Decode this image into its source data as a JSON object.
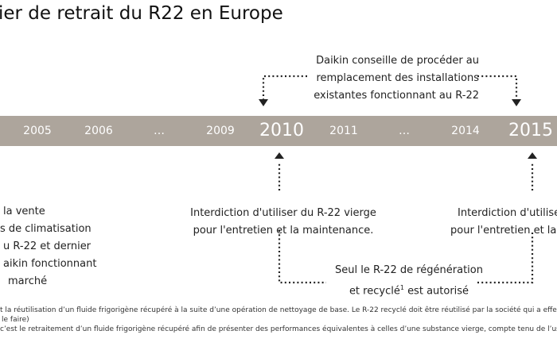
{
  "title": "ier de retrait du R22 en Europe",
  "timeline": {
    "years": [
      {
        "label": "2005",
        "major": false
      },
      {
        "label": "2006",
        "major": false
      },
      {
        "label": "…",
        "major": false
      },
      {
        "label": "2009",
        "major": false
      },
      {
        "label": "2010",
        "major": true
      },
      {
        "label": "2011",
        "major": false
      },
      {
        "label": "…",
        "major": false
      },
      {
        "label": "2014",
        "major": false
      },
      {
        "label": "2015",
        "major": true
      }
    ]
  },
  "advice": {
    "line1": "Daikin conseille de procéder au",
    "line2": "remplacement des installations",
    "line3": "existantes fonctionnant au R-22"
  },
  "left_note": {
    "line1": "la vente",
    "line2": "s de climatisation",
    "line3": "u R-22 et dernier",
    "line4": "aikin fonctionnant",
    "line5": "marché"
  },
  "ban_2010": {
    "line1": "Interdiction d'utiliser du R-22 vierge",
    "line2": "pour l'entretien et la maintenance."
  },
  "ban_2015": {
    "line1": "Interdiction d'utilise",
    "line2": "pour l'entretien et la m"
  },
  "recycled": {
    "line1": "Seul le R-22 de régénération",
    "line2_a": "et recyclé",
    "line2_sup": "1",
    "line2_b": "est autorisé"
  },
  "footnotes": {
    "line1": "t la réutilisation d’un fluide frigorigène récupéré à la suite d’une opération de nettoyage de base. Le R-22 recyclé doit être réutilisé par la société qui a effec",
    "line2": "le faire)",
    "line3": "c’est le retraitement d’un fluide frigorigène récupéré afin de présenter des performances équivalentes à celles d’une substance vierge, compte tenu de l’us"
  }
}
